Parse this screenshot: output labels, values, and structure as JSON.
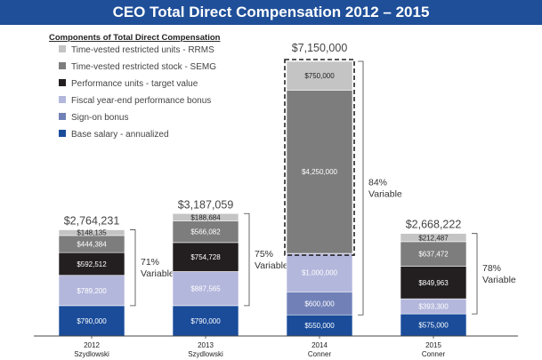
{
  "chart_data": {
    "type": "bar",
    "stacked": true,
    "title": "CEO Total Direct Compensation 2012 – 2015",
    "legend_title": "Components of Total Direct Compensation",
    "legend_placement": "top-left",
    "categories": [
      {
        "year": "2012",
        "name": "Szydlowski"
      },
      {
        "year": "2013",
        "name": "Szydlowski"
      },
      {
        "year": "2014",
        "name": "Conner"
      },
      {
        "year": "2015",
        "name": "Conner"
      }
    ],
    "totals": [
      "$2,764,231",
      "$3,187,059",
      "$7,150,000",
      "$2,668,222"
    ],
    "variable": [
      {
        "pct": "71%",
        "word": "Variable"
      },
      {
        "pct": "75%",
        "word": "Variable"
      },
      {
        "pct": "84%",
        "word": "Variable"
      },
      {
        "pct": "78%",
        "word": "Variable"
      }
    ],
    "highlight_category": 2,
    "series": [
      {
        "name": "Base salary -  annualized",
        "color": "#1a4c9a",
        "text_color": "#ffffff",
        "values": [
          790000,
          790000,
          550000,
          575000
        ],
        "labels": [
          "$790,000",
          "$790,000",
          "$550,000",
          "$575,000"
        ]
      },
      {
        "name": "Sign-on bonus",
        "color": "#7181b8",
        "text_color": "#ffffff",
        "values": [
          0,
          0,
          600000,
          0
        ],
        "labels": [
          "",
          "",
          "$600,000",
          ""
        ]
      },
      {
        "name": "Fiscal year-end performance bonus",
        "color": "#b4b7dc",
        "text_color": "#ffffff",
        "values": [
          789200,
          887565,
          1000000,
          393300
        ],
        "labels": [
          "$789,200",
          "$887,565",
          "$1,000,000",
          "$393,300"
        ]
      },
      {
        "name": "Performance units - target value",
        "color": "#231f20",
        "text_color": "#ffffff",
        "values": [
          592512,
          754728,
          0,
          849963
        ],
        "labels": [
          "$592,512",
          "$754,728",
          "",
          "$849,963"
        ]
      },
      {
        "name": "Time-vested restricted stock - SEMG",
        "color": "#7d7d7d",
        "text_color": "#ffffff",
        "values": [
          444384,
          566082,
          4250000,
          637472
        ],
        "labels": [
          "$444,384",
          "$566,082",
          "$4,250,000",
          "$637,472"
        ]
      },
      {
        "name": "Time-vested restricted units - RRMS",
        "color": "#c4c4c4",
        "text_color": "#222222",
        "values": [
          148135,
          188684,
          750000,
          212487
        ],
        "labels": [
          "$148,135",
          "$188,684",
          "$750,000",
          "$212,487"
        ]
      }
    ],
    "ylim": [
      0,
      7150000
    ],
    "grid": false
  }
}
